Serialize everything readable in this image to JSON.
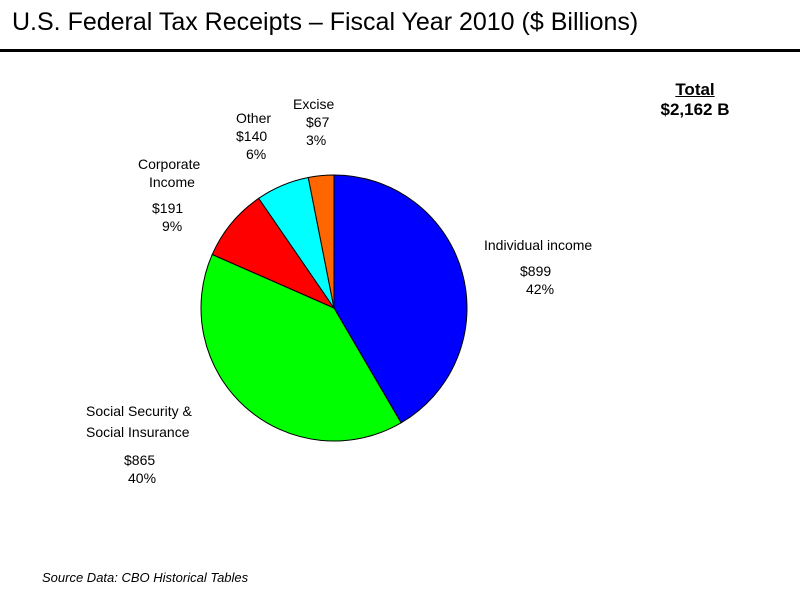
{
  "chart_data": {
    "type": "pie",
    "title": "U.S. Federal Tax Receipts – Fiscal Year 2010 ($ Billions)",
    "total_label": "Total",
    "total_value": "$2,162 B",
    "source": "Source Data: CBO Historical Tables",
    "slices": [
      {
        "name_lines": [
          "Individual income"
        ],
        "value": 899,
        "value_label": "$899",
        "percent_label": "42%",
        "color": "#0000FF"
      },
      {
        "name_lines": [
          "Social Security &",
          "Social Insurance"
        ],
        "value": 865,
        "value_label": "$865",
        "percent_label": "40%",
        "color": "#00FF00"
      },
      {
        "name_lines": [
          "Corporate",
          "Income"
        ],
        "value": 191,
        "value_label": "$191",
        "percent_label": "9%",
        "color": "#FF0000"
      },
      {
        "name_lines": [
          "Other"
        ],
        "value": 140,
        "value_label": "$140",
        "percent_label": "6%",
        "color": "#00FFFF"
      },
      {
        "name_lines": [
          "Excise"
        ],
        "value": 67,
        "value_label": "$67",
        "percent_label": "3%",
        "color": "#FF6600"
      }
    ]
  }
}
